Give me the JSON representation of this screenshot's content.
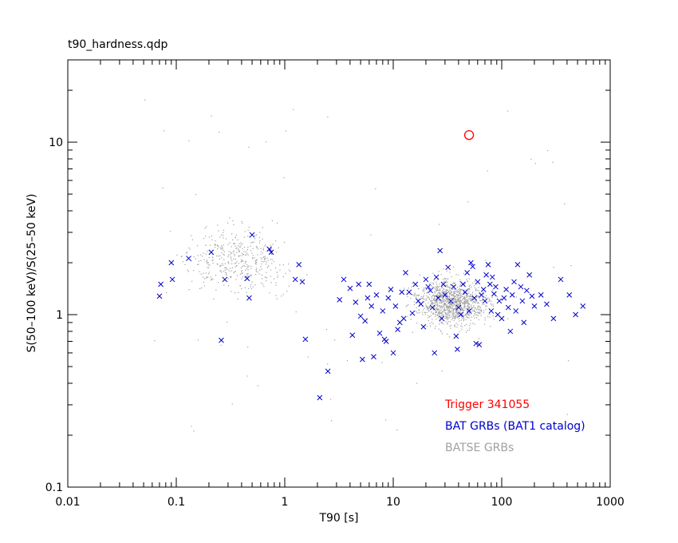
{
  "chart_data": {
    "type": "scatter",
    "title": "t90_hardness.qdp",
    "xlabel": "T90 [s]",
    "ylabel": "S(50–100 keV)/S(25–50 keV)",
    "xscale": "log",
    "yscale": "log",
    "xlim": [
      0.01,
      1000
    ],
    "ylim": [
      0.1,
      30
    ],
    "x_ticks": [
      {
        "value": 0.01,
        "label": "0.01"
      },
      {
        "value": 0.1,
        "label": "0.1"
      },
      {
        "value": 1,
        "label": "1"
      },
      {
        "value": 10,
        "label": "10"
      },
      {
        "value": 100,
        "label": "100"
      },
      {
        "value": 1000,
        "label": "1000"
      }
    ],
    "y_ticks": [
      {
        "value": 0.1,
        "label": "0.1"
      },
      {
        "value": 1,
        "label": "1"
      },
      {
        "value": 10,
        "label": "10"
      }
    ],
    "grid": false,
    "legend_position": "bottom-right",
    "series": [
      {
        "name": "Trigger 341055",
        "marker": "circle",
        "color": "#ff0000",
        "points": [
          [
            50,
            11
          ]
        ]
      },
      {
        "name": "BAT GRBs (BAT1 catalog)",
        "marker": "x",
        "color": "#0000cc",
        "points": [
          [
            0.07,
            1.28
          ],
          [
            0.072,
            1.5
          ],
          [
            0.09,
            2.0
          ],
          [
            0.092,
            1.6
          ],
          [
            0.13,
            2.12
          ],
          [
            0.21,
            2.3
          ],
          [
            0.26,
            0.71
          ],
          [
            0.28,
            1.6
          ],
          [
            0.45,
            1.62
          ],
          [
            0.47,
            1.25
          ],
          [
            0.5,
            2.9
          ],
          [
            0.72,
            2.4
          ],
          [
            0.75,
            2.3
          ],
          [
            1.25,
            1.6
          ],
          [
            1.35,
            1.95
          ],
          [
            1.45,
            1.55
          ],
          [
            1.55,
            0.72
          ],
          [
            2.1,
            0.33
          ],
          [
            2.5,
            0.47
          ],
          [
            3.2,
            1.22
          ],
          [
            3.5,
            1.6
          ],
          [
            4.0,
            1.42
          ],
          [
            4.2,
            0.76
          ],
          [
            4.5,
            1.18
          ],
          [
            4.8,
            1.5
          ],
          [
            5.0,
            0.98
          ],
          [
            5.2,
            0.55
          ],
          [
            5.5,
            0.92
          ],
          [
            5.8,
            1.25
          ],
          [
            6.0,
            1.5
          ],
          [
            6.3,
            1.12
          ],
          [
            6.6,
            0.57
          ],
          [
            7.0,
            1.3
          ],
          [
            7.5,
            0.78
          ],
          [
            8.0,
            1.05
          ],
          [
            8.3,
            0.72
          ],
          [
            8.6,
            0.7
          ],
          [
            9.0,
            1.25
          ],
          [
            9.5,
            1.4
          ],
          [
            10,
            0.6
          ],
          [
            10.5,
            1.12
          ],
          [
            11,
            0.82
          ],
          [
            11.5,
            0.9
          ],
          [
            12,
            1.35
          ],
          [
            12.5,
            0.95
          ],
          [
            13,
            1.75
          ],
          [
            14,
            1.35
          ],
          [
            15,
            1.02
          ],
          [
            16,
            1.5
          ],
          [
            17,
            1.2
          ],
          [
            18,
            1.15
          ],
          [
            19,
            0.85
          ],
          [
            20,
            1.6
          ],
          [
            21,
            1.45
          ],
          [
            22,
            1.38
          ],
          [
            23,
            1.1
          ],
          [
            24,
            0.6
          ],
          [
            25,
            1.65
          ],
          [
            26,
            1.25
          ],
          [
            27,
            2.35
          ],
          [
            28,
            0.95
          ],
          [
            29,
            1.5
          ],
          [
            30,
            1.3
          ],
          [
            32,
            1.88
          ],
          [
            34,
            1.2
          ],
          [
            36,
            1.45
          ],
          [
            38,
            0.75
          ],
          [
            39,
            0.63
          ],
          [
            40,
            1.1
          ],
          [
            42,
            1.0
          ],
          [
            44,
            1.5
          ],
          [
            46,
            1.35
          ],
          [
            48,
            1.75
          ],
          [
            50,
            1.05
          ],
          [
            52,
            2.0
          ],
          [
            54,
            1.9
          ],
          [
            56,
            1.25
          ],
          [
            58,
            0.68
          ],
          [
            60,
            1.55
          ],
          [
            62,
            0.67
          ],
          [
            65,
            1.3
          ],
          [
            68,
            1.4
          ],
          [
            70,
            1.2
          ],
          [
            72,
            1.7
          ],
          [
            75,
            1.95
          ],
          [
            78,
            1.5
          ],
          [
            80,
            1.05
          ],
          [
            82,
            1.65
          ],
          [
            85,
            1.32
          ],
          [
            88,
            1.45
          ],
          [
            92,
            1.0
          ],
          [
            95,
            1.2
          ],
          [
            100,
            0.95
          ],
          [
            105,
            1.25
          ],
          [
            110,
            1.4
          ],
          [
            115,
            1.1
          ],
          [
            120,
            0.8
          ],
          [
            125,
            1.3
          ],
          [
            130,
            1.55
          ],
          [
            135,
            1.05
          ],
          [
            140,
            1.95
          ],
          [
            150,
            1.45
          ],
          [
            155,
            1.2
          ],
          [
            160,
            0.9
          ],
          [
            170,
            1.38
          ],
          [
            180,
            1.7
          ],
          [
            190,
            1.28
          ],
          [
            200,
            1.12
          ],
          [
            230,
            1.3
          ],
          [
            260,
            1.15
          ],
          [
            300,
            0.95
          ],
          [
            350,
            1.6
          ],
          [
            420,
            1.3
          ],
          [
            480,
            1.0
          ],
          [
            560,
            1.12
          ]
        ]
      },
      {
        "name": "BATSE GRBs",
        "marker": "dot",
        "color": "#a0a0a0",
        "points": "many"
      }
    ]
  }
}
